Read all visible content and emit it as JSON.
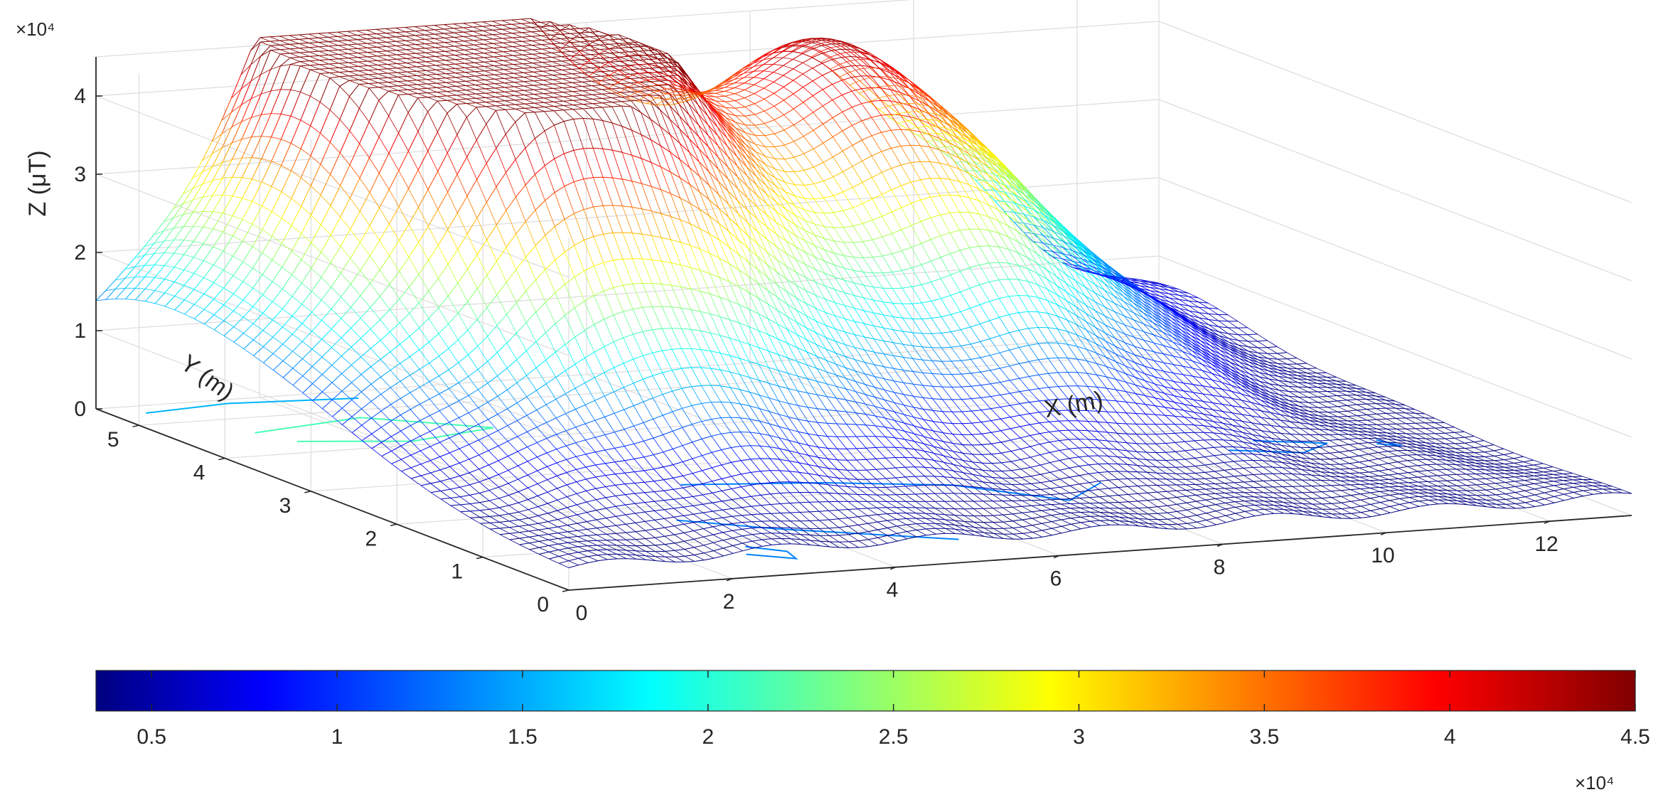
{
  "chart_data": {
    "type": "surface3d",
    "title": "",
    "axes": {
      "x": {
        "label": "X (m)",
        "ticks": [
          2,
          4,
          6,
          8,
          10,
          12
        ],
        "range": [
          0,
          13
        ]
      },
      "y": {
        "label": "Y (m)",
        "ticks": [
          0,
          1,
          2,
          3,
          4,
          5
        ],
        "range": [
          0,
          5.5
        ]
      },
      "z": {
        "label": "Z (μT)",
        "ticks": [
          0,
          1,
          2,
          3,
          4
        ],
        "range": [
          0,
          4.5
        ],
        "exponent_label": "×10⁴"
      }
    },
    "grid": true,
    "colormap": "jet",
    "colorbar": {
      "placement": "bottom",
      "ticks": [
        0.5,
        1,
        1.5,
        2,
        2.5,
        3,
        3.5,
        4,
        4.5
      ],
      "range": [
        0.35,
        4.5
      ],
      "exponent_label": "×10⁴"
    },
    "peaks": [
      {
        "x": 5.0,
        "y": 4.6,
        "z": 4.6
      },
      {
        "x": 2.4,
        "y": 4.6,
        "z": 3.4
      },
      {
        "x": 3.4,
        "y": 4.5,
        "z": 3.1
      },
      {
        "x": 8.3,
        "y": 4.7,
        "z": 3.4
      },
      {
        "x": 10.2,
        "y": 5.0,
        "z": 1.9
      },
      {
        "x": 0.6,
        "y": 4.0,
        "z": 1.4
      }
    ],
    "contours": [
      {
        "level": 1.0,
        "points": [
          [
            0.4,
            5.3
          ],
          [
            1.5,
            5.4
          ],
          [
            3.0,
            5.3
          ]
        ]
      },
      {
        "level": 1.6,
        "points": [
          [
            1.0,
            4.6
          ],
          [
            2.5,
            4.8
          ],
          [
            3.6,
            4.3
          ],
          [
            2.4,
            4.1
          ],
          [
            1.2,
            4.3
          ]
        ]
      },
      {
        "level": 0.8,
        "points": [
          [
            4.0,
            2.5
          ],
          [
            5.5,
            2.3
          ],
          [
            6.8,
            2.0
          ],
          [
            7.6,
            1.4
          ],
          [
            8.4,
            1.8
          ]
        ]
      },
      {
        "level": 0.8,
        "points": [
          [
            3.0,
            1.6
          ],
          [
            3.8,
            1.2
          ],
          [
            4.6,
            0.9
          ],
          [
            5.4,
            0.6
          ]
        ]
      },
      {
        "level": 0.8,
        "points": [
          [
            3.0,
            0.8
          ],
          [
            3.3,
            0.6
          ],
          [
            3.2,
            0.4
          ],
          [
            2.8,
            0.6
          ]
        ]
      },
      {
        "level": 0.8,
        "points": [
          [
            10.6,
            2.4
          ],
          [
            11.3,
            2.2
          ],
          [
            11.8,
            2.4
          ],
          [
            11.1,
            2.6
          ]
        ]
      },
      {
        "level": 0.8,
        "points": [
          [
            12.3,
            2.3
          ],
          [
            12.5,
            2.2
          ],
          [
            12.4,
            2.4
          ]
        ]
      }
    ]
  }
}
